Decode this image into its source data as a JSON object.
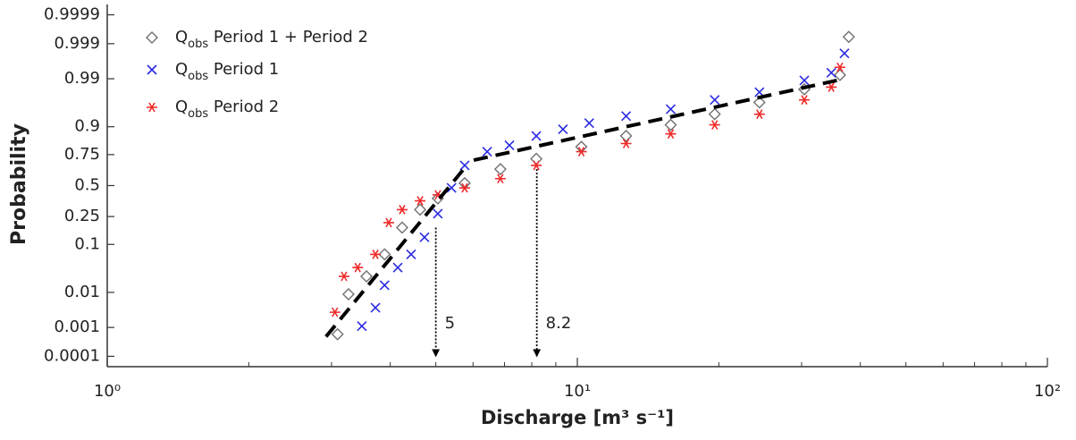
{
  "chart_data": {
    "type": "probability-scatter",
    "xlabel": "Discharge [m³ s⁻¹]",
    "ylabel": "Probability",
    "xscale": "log",
    "yscale": "normal-probability",
    "xlim": [
      1,
      100
    ],
    "xticks": [
      {
        "value": 1,
        "label": "10⁰"
      },
      {
        "value": 10,
        "label": "10¹"
      },
      {
        "value": 100,
        "label": "10²"
      }
    ],
    "xminor_ticks": true,
    "ylim": [
      4e-05,
      0.99996
    ],
    "yticks": [
      0.0001,
      0.001,
      0.01,
      0.1,
      0.25,
      0.5,
      0.75,
      0.9,
      0.99,
      0.999,
      0.9999
    ],
    "legend": "upper left",
    "series": [
      {
        "name": "Qobs Period 1 + Period 2",
        "color": "#707070",
        "marker": "diamond",
        "x": [
          3.09,
          3.26,
          3.56,
          3.89,
          4.24,
          4.63,
          5.05,
          5.76,
          6.86,
          8.18,
          10.2,
          12.7,
          15.8,
          19.6,
          24.4,
          30.4,
          36.2,
          37.8
        ],
        "values": [
          0.0006,
          0.009,
          0.024,
          0.067,
          0.18,
          0.3,
          0.39,
          0.52,
          0.64,
          0.72,
          0.8,
          0.86,
          0.907,
          0.94,
          0.965,
          0.982,
          0.992,
          0.9994
        ]
      },
      {
        "name": "Qobs Period 1",
        "color": "#2a2ae0",
        "marker": "x",
        "x": [
          3.48,
          3.72,
          3.89,
          4.15,
          4.43,
          4.73,
          5.05,
          5.4,
          5.76,
          6.43,
          7.17,
          8.18,
          9.32,
          10.6,
          12.7,
          15.8,
          19.6,
          24.4,
          30.4,
          34.7,
          37.0
        ],
        "values": [
          0.0011,
          0.0039,
          0.015,
          0.037,
          0.067,
          0.13,
          0.27,
          0.48,
          0.67,
          0.77,
          0.81,
          0.86,
          0.89,
          0.913,
          0.935,
          0.952,
          0.969,
          0.979,
          0.989,
          0.993,
          0.998
        ]
      },
      {
        "name": "Qobs Period 2",
        "color": "#f02a2a",
        "marker": "star",
        "x": [
          3.05,
          3.19,
          3.41,
          3.72,
          3.97,
          4.24,
          4.63,
          5.05,
          5.76,
          6.86,
          8.18,
          10.2,
          12.7,
          15.8,
          19.6,
          24.4,
          30.4,
          34.7,
          36.2
        ],
        "values": [
          0.0029,
          0.024,
          0.037,
          0.067,
          0.21,
          0.3,
          0.37,
          0.42,
          0.48,
          0.56,
          0.67,
          0.77,
          0.82,
          0.87,
          0.907,
          0.94,
          0.969,
          0.984,
          0.995
        ]
      }
    ],
    "fits": [
      {
        "color": "#000000",
        "dashed": true,
        "x": [
          2.92,
          5.76
        ],
        "values": [
          0.0005,
          0.65
        ]
      },
      {
        "color": "#000000",
        "dashed": true,
        "x": [
          6.02,
          37.0
        ],
        "values": [
          0.71,
          0.99
        ]
      }
    ],
    "annotations": [
      {
        "x": 5,
        "from": 0.18,
        "to": 0.0001
      },
      {
        "x": 8.2,
        "from": 0.64,
        "to": 0.0001
      }
    ]
  }
}
